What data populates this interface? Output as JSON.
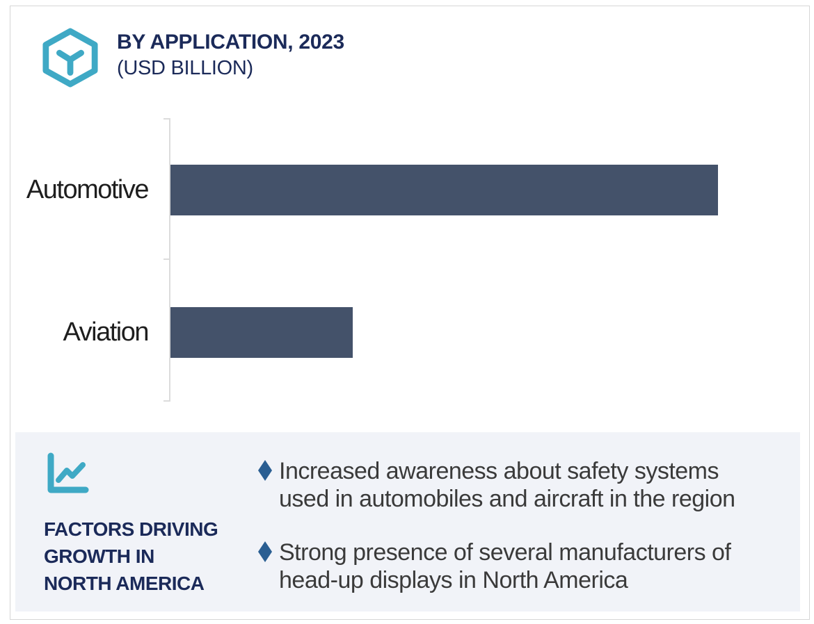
{
  "header": {
    "title_line1": "BY APPLICATION, 2023",
    "title_line2": "(USD BILLION)",
    "icon": "hexagon-cube-icon"
  },
  "chart_data": {
    "type": "bar",
    "orientation": "horizontal",
    "title": "BY APPLICATION, 2023 (USD BILLION)",
    "categories": [
      "Automotive",
      "Aviation"
    ],
    "values": [
      3.0,
      1.0
    ],
    "values_note": "relative bar lengths; no numeric axis or data labels shown in image",
    "xlim": [
      0,
      3.45
    ],
    "xlabel": "",
    "ylabel": "",
    "grid": false,
    "legend": false,
    "value_labels_shown": false,
    "bar_color": "#44526A"
  },
  "factors_panel": {
    "icon": "line-chart-icon",
    "heading": "FACTORS DRIVING GROWTH IN NORTH AMERICA",
    "heading_lines": [
      "FACTORS DRIVING",
      "GROWTH IN",
      "NORTH AMERICA"
    ],
    "bullet_glyph": "diamond",
    "bullets": [
      {
        "text": "Increased awareness about safety systems used in automobiles and aircraft in the region",
        "lines": [
          "Increased awareness about safety systems",
          "used in automobiles and aircraft in the region"
        ]
      },
      {
        "text": "Strong presence of several manufacturers of head-up displays in North America",
        "lines": [
          "Strong presence of several manufacturers of",
          "head-up displays in North America"
        ]
      }
    ]
  },
  "colors": {
    "accent_teal": "#3FA9C5",
    "navy": "#1B2A59",
    "bar": "#44526A",
    "bullet_diamond": "#2A5E92",
    "panel_bg": "#F1F3F8",
    "card_border": "#D6D6D6",
    "axis": "#DCDCDC",
    "body_text": "#3A3A3A",
    "label_text": "#1E1E1E"
  }
}
